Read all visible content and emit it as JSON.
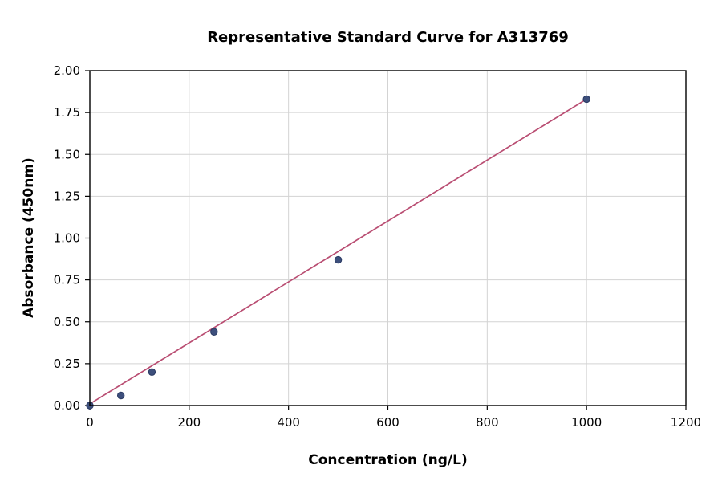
{
  "chart_data": {
    "type": "scatter",
    "title": "Representative Standard Curve for A313769",
    "xlabel": "Concentration (ng/L)",
    "ylabel": "Absorbance (450nm)",
    "xlim": [
      0,
      1200
    ],
    "ylim": [
      0,
      2.0
    ],
    "xticks": [
      0,
      200,
      400,
      600,
      800,
      1000,
      1200
    ],
    "xtick_labels": [
      "0",
      "200",
      "400",
      "600",
      "800",
      "1000",
      "1200"
    ],
    "yticks": [
      0,
      0.25,
      0.5,
      0.75,
      1.0,
      1.25,
      1.5,
      1.75,
      2.0
    ],
    "ytick_labels": [
      "0.00",
      "0.25",
      "0.50",
      "0.75",
      "1.00",
      "1.25",
      "1.50",
      "1.75",
      "2.00"
    ],
    "grid": true,
    "legend": "none",
    "points": {
      "x": [
        0,
        62.5,
        125,
        250,
        500,
        1000
      ],
      "y": [
        0.0,
        0.06,
        0.2,
        0.44,
        0.87,
        1.83
      ]
    },
    "trendline": {
      "x": [
        0,
        1000
      ],
      "y": [
        0.01,
        1.83
      ]
    },
    "colors": {
      "point": "#3d4f7c",
      "point_edge": "#2a3a63",
      "line": "#b94d72",
      "grid": "#d3d3d3",
      "axis": "#000000",
      "background": "#ffffff"
    }
  }
}
